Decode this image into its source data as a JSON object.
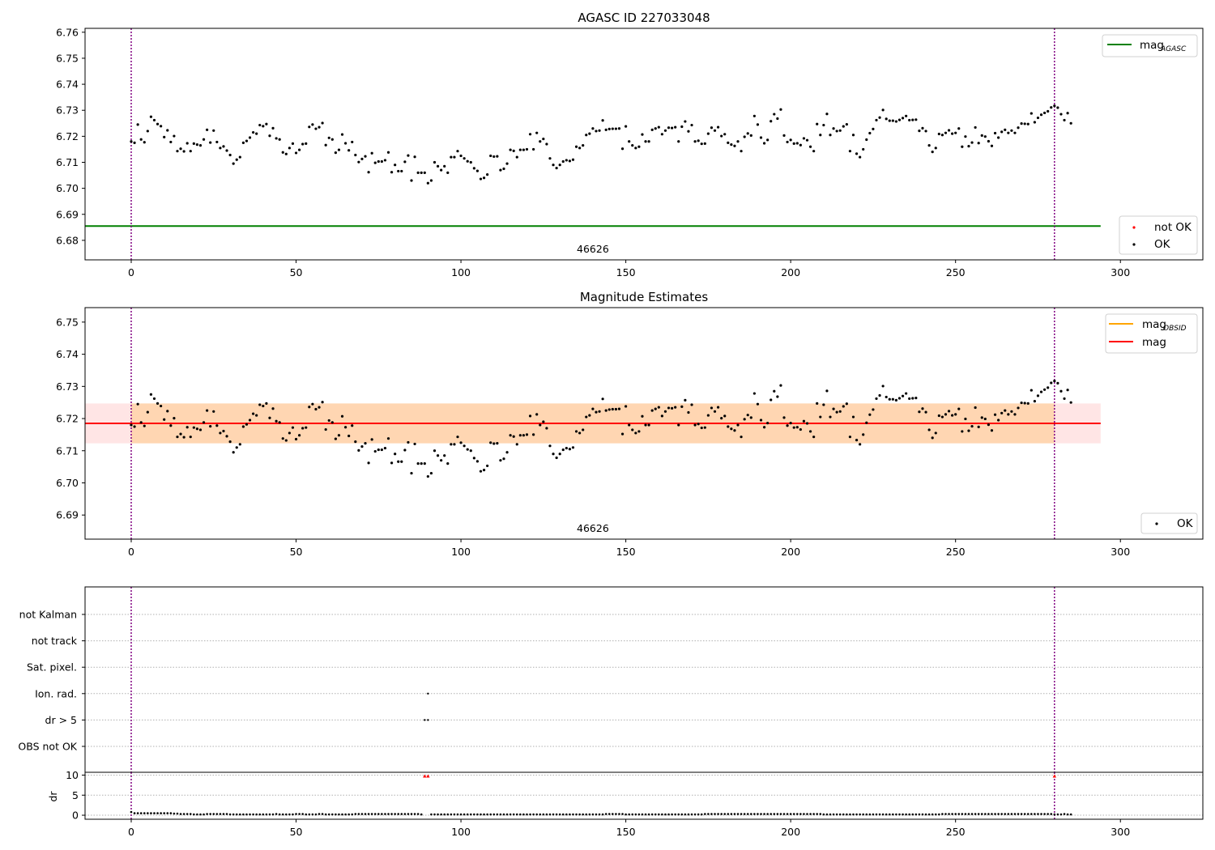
{
  "chart_data": [
    {
      "type": "scatter",
      "title": "AGASC ID 227033048",
      "annotation": "46626",
      "xlim": [
        -14,
        325
      ],
      "ylim": [
        6.6725,
        6.7615
      ],
      "xticks": [
        0,
        50,
        100,
        150,
        200,
        250,
        300
      ],
      "yticks": [
        6.68,
        6.69,
        6.7,
        6.71,
        6.72,
        6.73,
        6.74,
        6.75,
        6.76
      ],
      "reference_lines": [
        {
          "name": "mag",
          "subscript": "AGASC",
          "y": 6.6855,
          "x_start": -14,
          "x_end": 294,
          "color": "#008000"
        }
      ],
      "vlines": [
        0,
        280
      ],
      "legends": [
        {
          "placement": "upper-right",
          "entries": [
            {
              "name": "mag",
              "subscript": "AGASC",
              "kind": "line",
              "color": "#008000"
            }
          ]
        },
        {
          "placement": "lower-right",
          "entries": [
            {
              "name": "not OK",
              "kind": "marker",
              "color": "#ff0000"
            },
            {
              "name": "OK",
              "kind": "marker",
              "color": "#000000"
            }
          ]
        }
      ],
      "series": [
        {
          "name": "OK",
          "color": "#000000",
          "source": "mag_estimates"
        }
      ]
    },
    {
      "type": "scatter",
      "title": "Magnitude Estimates",
      "annotation": "46626",
      "xlim": [
        -14,
        325
      ],
      "ylim": [
        6.6825,
        6.7545
      ],
      "xticks": [
        0,
        50,
        100,
        150,
        200,
        250,
        300
      ],
      "yticks": [
        6.69,
        6.7,
        6.71,
        6.72,
        6.73,
        6.74,
        6.75
      ],
      "mean_band": {
        "y_low": 6.7123,
        "y_high": 6.7247,
        "x_start": 0,
        "x_end": 280,
        "color": "#ffa500"
      },
      "mean_band_full": {
        "y_low": 6.7123,
        "y_high": 6.7247,
        "x_start": -14,
        "x_end": 294,
        "color": "#ff0000"
      },
      "reference_lines": [
        {
          "name": "mag",
          "subscript": "OBSID",
          "y": 6.7185,
          "x_start": 0,
          "x_end": 280,
          "color": "#ffa500"
        },
        {
          "name": "mag",
          "y": 6.7185,
          "x_start": -14,
          "x_end": 294,
          "color": "#ff0000"
        }
      ],
      "vlines": [
        0,
        280
      ],
      "legends": [
        {
          "placement": "upper-right",
          "entries": [
            {
              "name": "mag",
              "subscript": "OBSID",
              "kind": "line",
              "color": "#ffa500"
            },
            {
              "name": "mag",
              "kind": "line",
              "color": "#ff0000"
            }
          ]
        },
        {
          "placement": "lower-right",
          "entries": [
            {
              "name": "OK",
              "kind": "marker",
              "color": "#000000"
            }
          ]
        }
      ],
      "series": [
        {
          "name": "OK",
          "color": "#000000",
          "source": "mag_estimates"
        }
      ]
    },
    {
      "type": "scatter",
      "title": "",
      "xlim": [
        -14,
        325
      ],
      "xticks": [
        0,
        50,
        100,
        150,
        200,
        250,
        300
      ],
      "flag_labels": [
        "not Kalman",
        "not track",
        "Sat. pixel.",
        "Ion. rad.",
        "dr > 5",
        "OBS not OK"
      ],
      "flag_points": [
        {
          "flag": "Ion. rad.",
          "x": 90
        },
        {
          "flag": "dr > 5",
          "x": 89
        },
        {
          "flag": "dr > 5",
          "x": 90
        }
      ],
      "vlines": [
        0,
        280
      ]
    },
    {
      "type": "scatter",
      "title": "",
      "ylabel": "dr",
      "xlim": [
        -14,
        325
      ],
      "ylim": [
        -1,
        10.7
      ],
      "xticks": [
        0,
        50,
        100,
        150,
        200,
        250,
        300
      ],
      "yticks": [
        0,
        5,
        10
      ],
      "dr_outliers": [
        {
          "x": 89,
          "y": 9.8
        },
        {
          "x": 90,
          "y": 9.8
        },
        {
          "x": 280,
          "y": 9.8
        }
      ],
      "vlines": [
        0,
        280
      ]
    }
  ],
  "mag_estimates": [
    6.718,
    6.7175,
    6.7245,
    6.7188,
    6.7177,
    6.722,
    6.7275,
    6.7262,
    6.7247,
    6.7239,
    6.7197,
    6.7223,
    6.7178,
    6.7201,
    6.7143,
    6.7152,
    6.7142,
    6.7173,
    6.7143,
    6.7172,
    6.7168,
    6.7165,
    6.7188,
    6.7225,
    6.7176,
    6.7222,
    6.7178,
    6.7155,
    6.7161,
    6.7145,
    6.7128,
    6.7095,
    6.711,
    6.712,
    6.7175,
    6.7182,
    6.7195,
    6.7215,
    6.721,
    6.7243,
    6.7239,
    6.7247,
    6.7202,
    6.7231,
    6.7192,
    6.7188,
    6.7138,
    6.7132,
    6.7155,
    6.7172,
    6.7136,
    6.7148,
    6.717,
    6.7172,
    6.7236,
    6.7245,
    6.7229,
    6.7235,
    6.7251,
    6.7166,
    6.7194,
    6.7188,
    6.7137,
    6.7148,
    6.7207,
    6.7173,
    6.7146,
    6.7178,
    6.7128,
    6.7101,
    6.7113,
    6.7123,
    6.7062,
    6.7135,
    6.7098,
    6.7103,
    6.7103,
    6.7108,
    6.7138,
    6.7062,
    6.709,
    6.7066,
    6.7066,
    6.7102,
    6.7126,
    6.703,
    6.7121,
    6.706,
    6.706,
    6.706,
    6.702,
    6.703,
    6.71,
    6.7085,
    6.707,
    6.7085,
    6.706,
    6.712,
    6.712,
    6.7143,
    6.7125,
    6.7115,
    6.7104,
    6.71,
    6.7077,
    6.7067,
    6.7036,
    6.704,
    6.7053,
    6.7125,
    6.7122,
    6.7123,
    6.707,
    6.7075,
    6.7095,
    6.7148,
    6.7144,
    6.712,
    6.7148,
    6.7148,
    6.715,
    6.7208,
    6.715,
    6.7213,
    6.718,
    6.719,
    6.717,
    6.7115,
    6.709,
    6.7078,
    6.709,
    6.7103,
    6.7108,
    6.7105,
    6.711,
    6.716,
    6.7155,
    6.7165,
    6.7205,
    6.721,
    6.723,
    6.722,
    6.7222,
    6.7261,
    6.7225,
    6.7228,
    6.7229,
    6.7229,
    6.723,
    6.7152,
    6.7238,
    6.718,
    6.7165,
    6.7155,
    6.716,
    6.7207,
    6.718,
    6.718,
    6.7225,
    6.723,
    6.7235,
    6.7208,
    6.7222,
    6.7233,
    6.7232,
    6.7235,
    6.718,
    6.7237,
    6.7257,
    6.7219,
    6.7243,
    6.718,
    6.7183,
    6.7171,
    6.7172,
    6.721,
    6.7233,
    6.7222,
    6.7235,
    6.7201,
    6.7208,
    6.7175,
    6.7168,
    6.7163,
    6.718,
    6.7143,
    6.7198,
    6.7211,
    6.7203,
    6.7278,
    6.7245,
    6.7195,
    6.7173,
    6.7186,
    6.7258,
    6.7285,
    6.7268,
    6.7303,
    6.7203,
    6.7178,
    6.7186,
    6.7172,
    6.7173,
    6.7166,
    6.7192,
    6.7185,
    6.716,
    6.7143,
    6.7247,
    6.7205,
    6.7243,
    6.7286,
    6.7205,
    6.723,
    6.722,
    6.7222,
    6.7238,
    6.7246,
    6.7143,
    6.7205,
    6.7133,
    6.712,
    6.715,
    6.7187,
    6.7212,
    6.7228,
    6.7262,
    6.7272,
    6.7301,
    6.7267,
    6.726,
    6.726,
    6.7257,
    6.7263,
    6.727,
    6.7278,
    6.7262,
    6.7263,
    6.7264,
    6.7221,
    6.7231,
    6.722,
    6.7165,
    6.714,
    6.7155,
    6.7209,
    6.7205,
    6.7213,
    6.7223,
    6.721,
    6.7213,
    6.723,
    6.716,
    6.7199,
    6.7162,
    6.7176,
    6.7234,
    6.7174,
    6.7203,
    6.7199,
    6.7181,
    6.7163,
    6.7212,
    6.7195,
    6.7217,
    6.7225,
    6.7213,
    6.7222,
    6.7213,
    6.7233,
    6.7249,
    6.7248,
    6.7247,
    6.7288,
    6.7254,
    6.7271,
    6.7283,
    6.729,
    6.7296,
    6.7311,
    6.7317,
    6.731,
    6.7285,
    6.7262,
    6.7289,
    6.725
  ],
  "dr_values": [
    0.8,
    0.5,
    0.5,
    0.5,
    0.5,
    0.5,
    0.5,
    0.5,
    0.5,
    0.5,
    0.5,
    0.5,
    0.5,
    0.4,
    0.4,
    0.3,
    0.3,
    0.3,
    0.3,
    0.2,
    0.2,
    0.2,
    0.2,
    0.3,
    0.3,
    0.3,
    0.3,
    0.3,
    0.3,
    0.3,
    0.2,
    0.2,
    0.2,
    0.2,
    0.2,
    0.2,
    0.2,
    0.2,
    0.2,
    0.2,
    0.2,
    0.2,
    0.2,
    0.2,
    0.3,
    0.2,
    0.2,
    0.2,
    0.2,
    0.2,
    0.3,
    0.3,
    0.3,
    0.2,
    0.2,
    0.2,
    0.2,
    0.3,
    0.3,
    0.2,
    0.2,
    0.2,
    0.2,
    0.2,
    0.2,
    0.2,
    0.2,
    0.2,
    0.3,
    0.3,
    0.3,
    0.3,
    0.3,
    0.3,
    0.3,
    0.3,
    0.3,
    0.3,
    0.3,
    0.3,
    0.3,
    0.3,
    0.3,
    0.3,
    0.3,
    0.3,
    0.3,
    0.3,
    0.2,
    9.8,
    9.8,
    0.2,
    0.2,
    0.2,
    0.2,
    0.2,
    0.2,
    0.2,
    0.2,
    0.2,
    0.2,
    0.2,
    0.2,
    0.2,
    0.2,
    0.2,
    0.2,
    0.2,
    0.2,
    0.2,
    0.2,
    0.2,
    0.2,
    0.2,
    0.2,
    0.2,
    0.2,
    0.2,
    0.2,
    0.2,
    0.2,
    0.2,
    0.2,
    0.2,
    0.2,
    0.2,
    0.2,
    0.2,
    0.2,
    0.2,
    0.2,
    0.2,
    0.2,
    0.2,
    0.2,
    0.2,
    0.2,
    0.2,
    0.2,
    0.2,
    0.2,
    0.2,
    0.2,
    0.2,
    0.3,
    0.3,
    0.3,
    0.3,
    0.3,
    0.3,
    0.2,
    0.2,
    0.2,
    0.2,
    0.2,
    0.2,
    0.2,
    0.2,
    0.2,
    0.2,
    0.2,
    0.2,
    0.2,
    0.2,
    0.2,
    0.2,
    0.2,
    0.2,
    0.2,
    0.2,
    0.2,
    0.2,
    0.2,
    0.2,
    0.3,
    0.3,
    0.3,
    0.3,
    0.3,
    0.3,
    0.3,
    0.3,
    0.3,
    0.3,
    0.3,
    0.3,
    0.3,
    0.3,
    0.3,
    0.3,
    0.3,
    0.3,
    0.3,
    0.3,
    0.3,
    0.3,
    0.3,
    0.3,
    0.3,
    0.3,
    0.3,
    0.3,
    0.3,
    0.3,
    0.3,
    0.3,
    0.3,
    0.3,
    0.3,
    0.3,
    0.2,
    0.2,
    0.2,
    0.2,
    0.2,
    0.2,
    0.2,
    0.2,
    0.2,
    0.2,
    0.2,
    0.2,
    0.2,
    0.2,
    0.2,
    0.2,
    0.2,
    0.2,
    0.2,
    0.2,
    0.2,
    0.2,
    0.2,
    0.2,
    0.2,
    0.2,
    0.2,
    0.2,
    0.2,
    0.2,
    0.2,
    0.2,
    0.2,
    0.2,
    0.2,
    0.2,
    0.3,
    0.3,
    0.3,
    0.3,
    0.3,
    0.3,
    0.3,
    0.3,
    0.3,
    0.3,
    0.3,
    0.3,
    0.3,
    0.3,
    0.3,
    0.3,
    0.3,
    0.3,
    0.3,
    0.3,
    0.3,
    0.3,
    0.3,
    0.3,
    0.3,
    0.3,
    0.3,
    0.3,
    0.3,
    0.3,
    0.3,
    0.3,
    0.3,
    0.3,
    0.2,
    0.2,
    0.2,
    0.3,
    0.2,
    0.2
  ]
}
